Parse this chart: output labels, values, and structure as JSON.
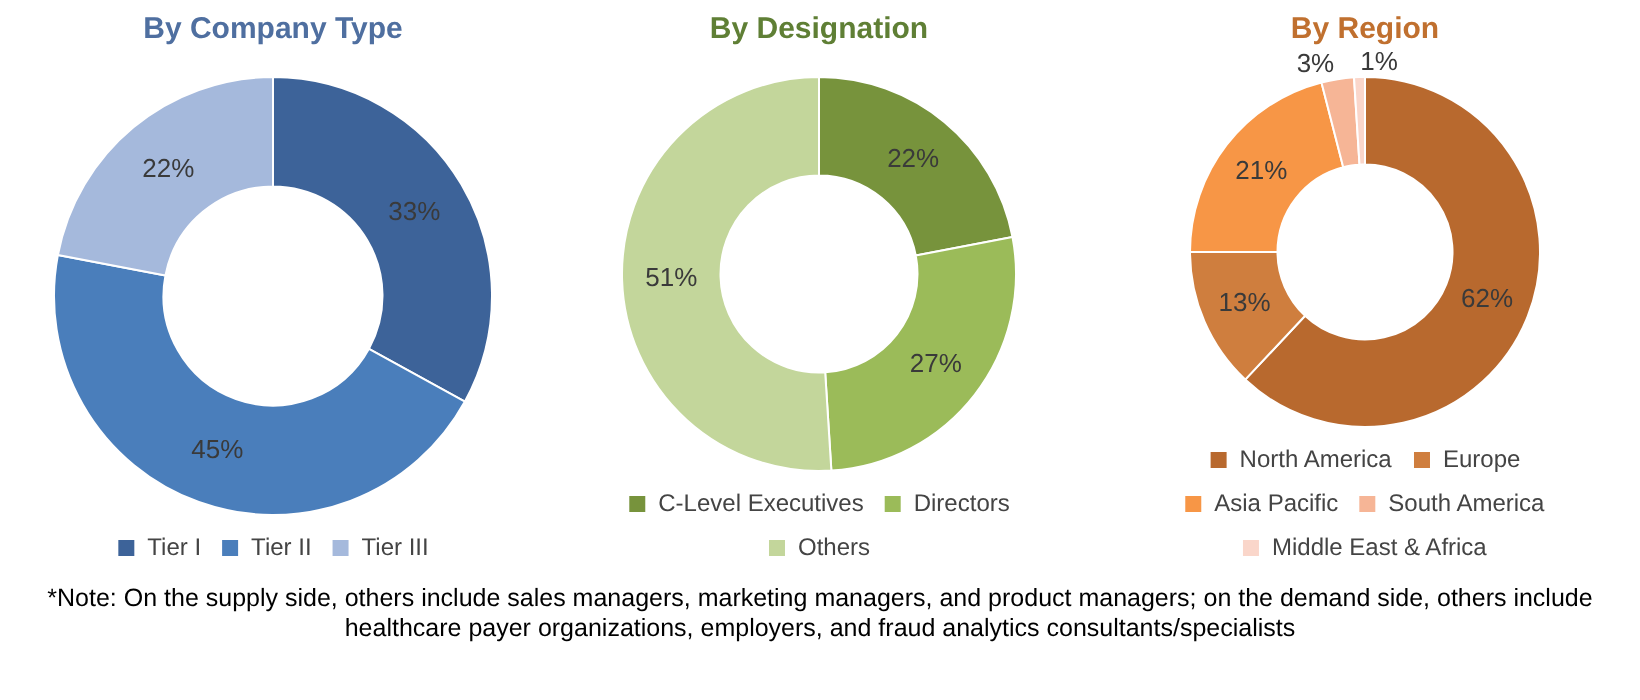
{
  "chart_data": [
    {
      "type": "donut",
      "title": "By Company Type",
      "categories": [
        "Tier I",
        "Tier II",
        "Tier III"
      ],
      "values": [
        33,
        45,
        22
      ],
      "colors": [
        "#3d6399",
        "#4a7ebb",
        "#a5b9dc"
      ],
      "value_labels": [
        "33%",
        "45%",
        "22%"
      ],
      "legend": "bottom",
      "annotations": [
        "*Note: On the supply side, others include sales managers, marketing managers, and product managers; on the demand side, others include healthcare payer organizations, employers, and fraud analytics consultants/specialists"
      ]
    },
    {
      "type": "donut",
      "title": "By Designation",
      "categories": [
        "C-Level Executives",
        "Directors",
        "Others"
      ],
      "values": [
        22,
        27,
        51
      ],
      "colors": [
        "#77933c",
        "#9bbb59",
        "#c3d69b"
      ],
      "value_labels": [
        "22%",
        "27%",
        "51%"
      ],
      "legend": "bottom"
    },
    {
      "type": "donut",
      "title": "By Region",
      "categories": [
        "North America",
        "Europe",
        "Asia Pacific",
        "South America",
        "Middle East & Africa"
      ],
      "values": [
        62,
        13,
        21,
        3,
        1
      ],
      "colors": [
        "#b8692e",
        "#cf7e3e",
        "#f79646",
        "#f6b596",
        "#fad6ca"
      ],
      "value_labels": [
        "62%",
        "13%",
        "21%",
        "3%",
        "1%"
      ],
      "legend": "bottom"
    }
  ]
}
